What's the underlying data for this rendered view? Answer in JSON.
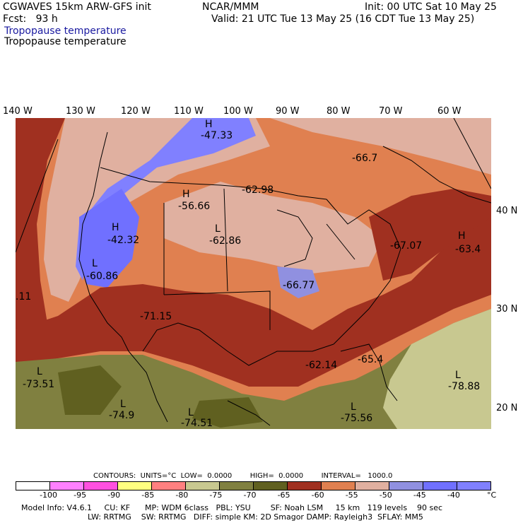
{
  "header": {
    "model": "CGWAVES 15km ARW-GFS init",
    "org": "NCAR/MMM",
    "init": "Init: 00 UTC Sat 10 May 25",
    "fcst": "Fcst:   93 h",
    "valid": "Valid: 21 UTC Tue 13 May 25 (16 CDT Tue 13 May 25)",
    "field1": "Tropopause temperature",
    "field2": "Tropopause temperature"
  },
  "longitudes": [
    "140 W",
    "130 W",
    "120 W",
    "110 W",
    "100 W",
    "90 W",
    "80 W",
    "70 W",
    "60 W"
  ],
  "latitudes": [
    "40 N",
    "30 N",
    "20 N"
  ],
  "map_labels": [
    {
      "t": "H"
    },
    {
      "t": "-47.33"
    },
    {
      "t": "-66.7"
    },
    {
      "t": "-62.98"
    },
    {
      "t": "H"
    },
    {
      "t": "-56.66"
    },
    {
      "t": "H"
    },
    {
      "t": "-42.32"
    },
    {
      "t": "L"
    },
    {
      "t": "-62.86"
    },
    {
      "t": "-67.07"
    },
    {
      "t": "H"
    },
    {
      "t": "-63.4"
    },
    {
      "t": "L"
    },
    {
      "t": "-60.86"
    },
    {
      "t": "-66.77"
    },
    {
      "t": ".11"
    },
    {
      "t": "-71.15"
    },
    {
      "t": "-62.14"
    },
    {
      "t": "-65.4"
    },
    {
      "t": "L"
    },
    {
      "t": "-73.51"
    },
    {
      "t": "L"
    },
    {
      "t": "-78.88"
    },
    {
      "t": "L"
    },
    {
      "t": "-74.9"
    },
    {
      "t": "L"
    },
    {
      "t": "-74.51"
    },
    {
      "t": "L"
    },
    {
      "t": "-75.56"
    }
  ],
  "colorbar": {
    "contours": "CONTOURS:  UNITS=°C  LOW=  0.0000        HIGH=  0.0000        INTERVAL=   1000.0",
    "colors": [
      "#ffffff",
      "#ff80ff",
      "#ff50e0",
      "#ffff80",
      "#ff8080",
      "#c8c890",
      "#808040",
      "#606020",
      "#a03020",
      "#e08050",
      "#e0b0a0",
      "#9090e0",
      "#7070ff",
      "#8080ff"
    ],
    "ticks": [
      "-100",
      "-95",
      "-90",
      "-85",
      "-80",
      "-75",
      "-70",
      "-65",
      "-60",
      "-55",
      "-50",
      "-45",
      "-40",
      "°C"
    ]
  },
  "footer": {
    "line1": "Model Info: V4.6.1     CU: KF      MP: WDM 6class   PBL: YSU        SF: Noah LSM     15 km   119 levels    90 sec",
    "line2": "LW: RRTMG    SW: RRTMG   DIFF: simple KM: 2D Smagor DAMP: Rayleigh3  SFLAY: MM5"
  }
}
